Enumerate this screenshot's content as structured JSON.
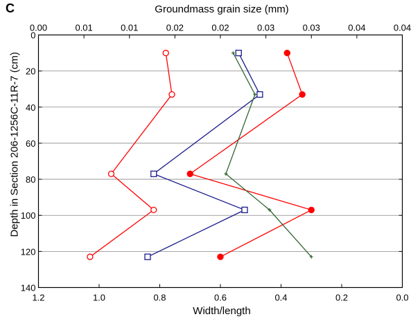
{
  "panel_label": "C",
  "chart_data": {
    "type": "line",
    "top_axis": {
      "label": "Groundmass grain size (mm)",
      "tick_labels": [
        "0.00",
        "0.01",
        "0.01",
        "0.02",
        "0.02",
        "0.03",
        "0.03",
        "0.04",
        "0.04"
      ],
      "range": [
        0.0,
        0.04
      ]
    },
    "x_axis": {
      "label": "Width/length",
      "tick_labels": [
        "1.2",
        "1.0",
        "0.8",
        "0.6",
        "0.4",
        "0.2",
        "0.0"
      ],
      "range": [
        1.2,
        0.0
      ],
      "reversed": true
    },
    "y_axis": {
      "label": "Depth in Section 206-1256C-11R-7 (cm)",
      "tick_labels": [
        "0",
        "20",
        "40",
        "60",
        "80",
        "100",
        "120",
        "140"
      ],
      "range": [
        0,
        140
      ],
      "inverted": true
    },
    "grid": "horizontal",
    "series": [
      {
        "marker": "open-circle",
        "color": "#ff0000",
        "axis": "width_length",
        "points": [
          [
            0.78,
            10
          ],
          [
            0.76,
            33
          ],
          [
            0.96,
            77
          ],
          [
            0.82,
            97
          ],
          [
            1.03,
            123
          ]
        ]
      },
      {
        "marker": "filled-circle",
        "color": "#ff0000",
        "axis": "width_length",
        "points": [
          [
            0.38,
            10
          ],
          [
            0.33,
            33
          ],
          [
            0.7,
            77
          ],
          [
            0.3,
            97
          ],
          [
            0.6,
            123
          ]
        ]
      },
      {
        "marker": "open-square",
        "color": "#1a1a8c",
        "axis": "width_length",
        "points": [
          [
            0.54,
            10
          ],
          [
            0.47,
            33
          ],
          [
            0.82,
            77
          ],
          [
            0.52,
            97
          ],
          [
            0.84,
            123
          ]
        ]
      },
      {
        "marker": "plus",
        "color": "#336633",
        "axis": "grain_size",
        "points": [
          [
            0.0214,
            10
          ],
          [
            0.0238,
            33
          ],
          [
            0.0206,
            77
          ],
          [
            0.0254,
            97
          ],
          [
            0.03,
            123
          ]
        ]
      }
    ]
  }
}
